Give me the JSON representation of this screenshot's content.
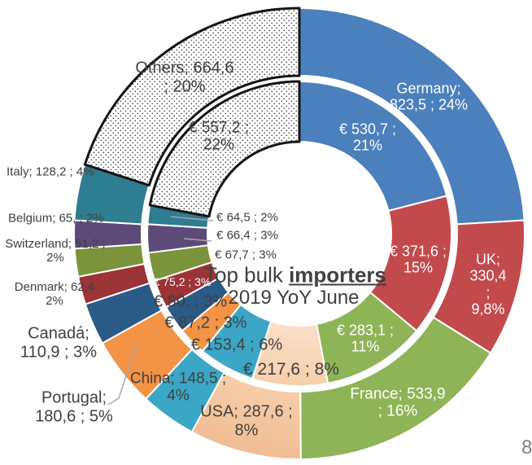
{
  "page": {
    "page_number": "8"
  },
  "chart_data": {
    "type": "donut-nested-two-rings",
    "title_prefix": "Top bulk ",
    "title_emphasis": "importers",
    "subtitle": "2019 YoY June",
    "direction": "clockwise-from-top",
    "rings": [
      "outer: country; volume; share",
      "inner: € value; share"
    ],
    "slices": [
      {
        "id": "germany",
        "name": "Germany",
        "color": "#4b80bd",
        "outer": {
          "value": 823.5,
          "pct": 24,
          "label": "Germany;\n823,5 ; 24%"
        },
        "inner": {
          "value": 530.7,
          "pct": 21,
          "label": "€ 530,7 ;\n21%"
        }
      },
      {
        "id": "uk",
        "name": "UK",
        "color": "#c34a4c",
        "outer": {
          "value": 330.4,
          "pct": 9.8,
          "label": "UK; 330,4 ;\n9,8%"
        },
        "inner": {
          "value": 371.6,
          "pct": 15,
          "label": "€ 371,6 ;\n15%"
        }
      },
      {
        "id": "france",
        "name": "France",
        "color": "#8fb457",
        "outer": {
          "value": 533.9,
          "pct": 16,
          "label": "France; 533,9\n; 16%"
        },
        "inner": {
          "value": 283.1,
          "pct": 11,
          "label": "€ 283,1 ;\n11%"
        }
      },
      {
        "id": "usa",
        "name": "USA",
        "color": "#f5c9a5",
        "gradient": true,
        "outer": {
          "value": 287.6,
          "pct": 8,
          "label": "USA; 287,6 ;\n8%"
        },
        "inner": {
          "value": 217.6,
          "pct": 8,
          "label": "€ 217,6 ; 8%"
        }
      },
      {
        "id": "china",
        "name": "China",
        "color": "#3ba6c6",
        "outer": {
          "value": 148.5,
          "pct": 4,
          "label": "China; 148,5 ;\n4%"
        },
        "inner": {
          "value": 153.4,
          "pct": 6,
          "label": "€ 153,4 ; 6%"
        }
      },
      {
        "id": "portugal",
        "name": "Portugal",
        "color": "#f29346",
        "outer": {
          "value": 180.6,
          "pct": 5,
          "label": "Portugal;\n180,6 ; 5%"
        },
        "inner": {
          "value": 87.2,
          "pct": 3,
          "label": "€ 87,2 ; 3%"
        }
      },
      {
        "id": "canada",
        "name": "Canadá",
        "color": "#2b5a87",
        "outer": {
          "value": 110.9,
          "pct": 3,
          "label": "Canadá;\n110,9 ; 3%"
        },
        "inner": {
          "value": 80,
          "pct": 3,
          "label": "€ 80, ; 3%"
        }
      },
      {
        "id": "denmark",
        "name": "Denmark",
        "color": "#9c3336",
        "outer": {
          "value": 62.4,
          "pct": 2,
          "label": "Denmark; 62,4\n2%"
        },
        "inner": {
          "value": 75.2,
          "pct": 3,
          "label": "€ 75,2 ; 3%"
        }
      },
      {
        "id": "switzerland",
        "name": "Switzerland",
        "color": "#7b943c",
        "outer": {
          "value": 51.2,
          "pct": 2,
          "label": "Switzerland; 51,2 ;\n2%"
        },
        "inner": {
          "value": 67.7,
          "pct": 3,
          "label": "€ 67,7 ; 3%"
        }
      },
      {
        "id": "belgium",
        "name": "Belgium",
        "color": "#5d4a78",
        "outer": {
          "value": 65,
          "pct": 2,
          "label": "Belgium; 65, ; 2%"
        },
        "inner": {
          "value": 66.4,
          "pct": 3,
          "label": "€ 66,4 ; 3%"
        }
      },
      {
        "id": "italy",
        "name": "Italy",
        "color": "#2e7d90",
        "outer": {
          "value": 128.2,
          "pct": 4,
          "label": "Italy; 128,2 ; 4%"
        },
        "inner": {
          "value": 64.5,
          "pct": 2,
          "label": "€ 64,5 ; 2%"
        }
      },
      {
        "id": "others",
        "name": "Others",
        "color": "#ffffff",
        "pattern": "dots",
        "stroke": "#141414",
        "outer": {
          "value": 664.6,
          "pct": 20,
          "label": "Others; 664,6\n; 20%"
        },
        "inner": {
          "value": 557.2,
          "pct": 22,
          "label": "€ 557,2 ;\n22%"
        }
      }
    ]
  }
}
